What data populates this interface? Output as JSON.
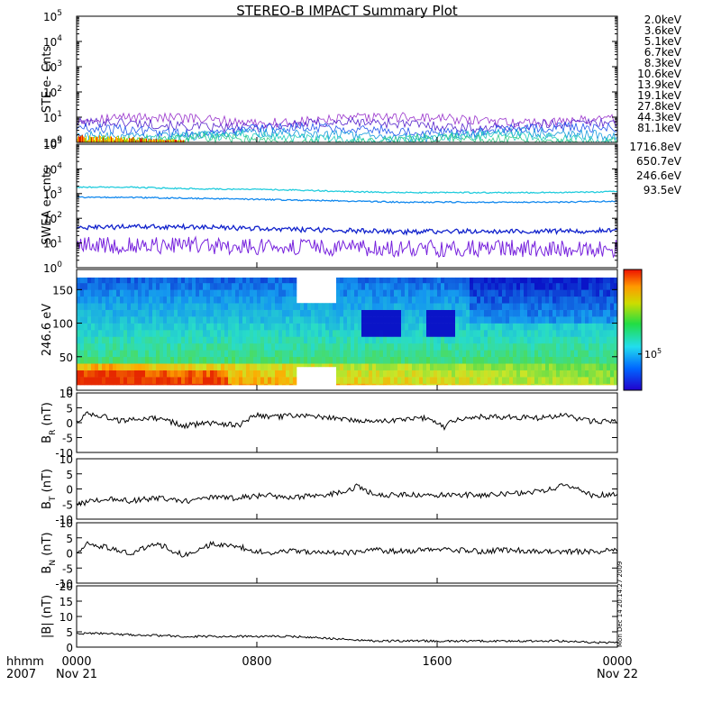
{
  "title": "STEREO-B IMPACT Summary Plot",
  "side_stamp": "Mon Dec 14 20:14:27 2009",
  "time_axis": {
    "corner_labels": [
      "hhmm",
      "2007"
    ],
    "ticks": [
      {
        "hhmm": "0000",
        "date": "Nov 21",
        "frac": 0
      },
      {
        "hhmm": "0800",
        "date": "",
        "frac": 0.3333
      },
      {
        "hhmm": "1600",
        "date": "",
        "frac": 0.6667
      },
      {
        "hhmm": "0000",
        "date": "Nov 22",
        "frac": 1
      }
    ]
  },
  "ste_legend": [
    {
      "label": "2.0keV",
      "color": "#9933cc"
    },
    {
      "label": "3.6keV",
      "color": "#5522cc"
    },
    {
      "label": "5.1keV",
      "color": "#2255ee"
    },
    {
      "label": "6.7keV",
      "color": "#1199dd"
    },
    {
      "label": "8.3keV",
      "color": "#22ccbb"
    },
    {
      "label": "10.6keV",
      "color": "#33cc88"
    },
    {
      "label": "13.9keV",
      "color": "#22bb22"
    },
    {
      "label": "19.1keV",
      "color": "#aacc00"
    },
    {
      "label": "27.8keV",
      "color": "#ffcc00"
    },
    {
      "label": "44.3keV",
      "color": "#ff8800"
    },
    {
      "label": "81.1keV",
      "color": "#dd2200"
    }
  ],
  "swea_legend": [
    {
      "label": "1716.8eV",
      "color": "#7722dd"
    },
    {
      "label": "650.7eV",
      "color": "#1122cc"
    },
    {
      "label": "246.6eV",
      "color": "#1188ee"
    },
    {
      "label": "93.5eV",
      "color": "#22ccdd"
    }
  ],
  "chart_data": [
    {
      "type": "line",
      "ylabel": "STE e- Cnts",
      "yscale": "log",
      "ylim": [
        1,
        100000
      ],
      "yticks": [
        {
          "base": "10",
          "exp": "0",
          "v": 1
        },
        {
          "base": "10",
          "exp": "1",
          "v": 10
        },
        {
          "base": "10",
          "exp": "2",
          "v": 100
        },
        {
          "base": "10",
          "exp": "3",
          "v": 1000
        },
        {
          "base": "10",
          "exp": "4",
          "v": 10000
        },
        {
          "base": "10",
          "exp": "5",
          "v": 100000
        }
      ],
      "series": [
        {
          "name": "2.0keV",
          "level": 8
        },
        {
          "name": "3.6keV",
          "level": 5
        },
        {
          "name": "5.1keV",
          "level": 3.2
        },
        {
          "name": "6.7keV",
          "level": 2
        },
        {
          "name": "8.3keV",
          "level": 1.5
        },
        {
          "name": "10.6keV",
          "level": 1.2
        }
      ]
    },
    {
      "type": "line",
      "ylabel": "SWEA e- cnts",
      "yscale": "log",
      "ylim": [
        1,
        100000
      ],
      "yticks": [
        {
          "base": "10",
          "exp": "0",
          "v": 1
        },
        {
          "base": "10",
          "exp": "1",
          "v": 10
        },
        {
          "base": "10",
          "exp": "2",
          "v": 100
        },
        {
          "base": "10",
          "exp": "3",
          "v": 1000
        },
        {
          "base": "10",
          "exp": "4",
          "v": 10000
        },
        {
          "base": "10",
          "exp": "5",
          "v": 100000
        }
      ],
      "series": [
        {
          "name": "93.5eV",
          "x": [
            0,
            0.1,
            0.2,
            0.3,
            0.4,
            0.5,
            0.6,
            0.7,
            0.8,
            0.9,
            1.0
          ],
          "y": [
            1800,
            1800,
            1600,
            1500,
            1400,
            1200,
            1100,
            1100,
            1100,
            1100,
            1200
          ]
        },
        {
          "name": "246.6eV",
          "x": [
            0,
            0.1,
            0.2,
            0.3,
            0.4,
            0.5,
            0.6,
            0.7,
            0.8,
            0.9,
            1.0
          ],
          "y": [
            700,
            700,
            650,
            600,
            550,
            500,
            450,
            450,
            450,
            450,
            500
          ]
        },
        {
          "name": "650.7eV",
          "x": [
            0,
            0.1,
            0.2,
            0.3,
            0.4,
            0.5,
            0.6,
            0.7,
            0.8,
            0.9,
            1.0
          ],
          "y": [
            40,
            45,
            45,
            40,
            35,
            32,
            28,
            30,
            30,
            30,
            32
          ]
        },
        {
          "name": "1716.8eV",
          "x": [
            0,
            0.1,
            0.2,
            0.3,
            0.4,
            0.5,
            0.6,
            0.7,
            0.8,
            0.9,
            1.0
          ],
          "y": [
            8,
            8,
            8,
            7,
            7,
            6,
            6,
            6,
            6,
            6,
            6
          ]
        }
      ]
    },
    {
      "type": "heatmap",
      "ylabel": "246.6 eV",
      "ylim": [
        0,
        180
      ],
      "yticks": [
        {
          "label": "0",
          "v": 0
        },
        {
          "label": "50",
          "v": 50
        },
        {
          "label": "100",
          "v": 100
        },
        {
          "label": "150",
          "v": 150
        }
      ],
      "colorbar": {
        "tick_base": "10",
        "tick_exp": "5",
        "tick_frac": 0.3
      }
    },
    {
      "type": "line",
      "ylabel_main": "B",
      "ylabel_sub": "R",
      "ylabel_unit": "(nT)",
      "ylim": [
        -10,
        10
      ],
      "yticks": [
        {
          "label": "10",
          "v": 10
        },
        {
          "label": "5",
          "v": 5
        },
        {
          "label": "0",
          "v": 0
        },
        {
          "label": "-5",
          "v": -5
        },
        {
          "label": "-10",
          "v": -10
        }
      ],
      "x": [
        0,
        0.02,
        0.05,
        0.08,
        0.1,
        0.15,
        0.2,
        0.25,
        0.3,
        0.33,
        0.37,
        0.4,
        0.45,
        0.5,
        0.55,
        0.6,
        0.65,
        0.68,
        0.7,
        0.75,
        0.8,
        0.85,
        0.9,
        0.95,
        1.0
      ],
      "y": [
        0.5,
        3,
        2.5,
        0.5,
        1,
        1.5,
        -1,
        0,
        -1,
        2.5,
        2,
        2.5,
        2,
        1,
        0.5,
        1,
        1.5,
        -1.5,
        1,
        2,
        2,
        1.5,
        2.5,
        0.5,
        0.5
      ]
    },
    {
      "type": "line",
      "ylabel_main": "B",
      "ylabel_sub": "T",
      "ylabel_unit": "(nT)",
      "ylim": [
        -10,
        10
      ],
      "yticks": [
        {
          "label": "10",
          "v": 10
        },
        {
          "label": "5",
          "v": 5
        },
        {
          "label": "0",
          "v": 0
        },
        {
          "label": "-5",
          "v": -5
        },
        {
          "label": "-10",
          "v": -10
        }
      ],
      "x": [
        0,
        0.03,
        0.06,
        0.1,
        0.15,
        0.2,
        0.25,
        0.3,
        0.35,
        0.4,
        0.45,
        0.5,
        0.52,
        0.55,
        0.6,
        0.65,
        0.7,
        0.75,
        0.8,
        0.85,
        0.9,
        0.93,
        0.95,
        1.0
      ],
      "y": [
        -5,
        -4,
        -3,
        -4,
        -3,
        -4,
        -3,
        -3,
        -2,
        -3,
        -2,
        -1,
        1,
        -2,
        -2,
        -2,
        -2,
        -2,
        -1.5,
        -1,
        1,
        0,
        -2,
        -2
      ]
    },
    {
      "type": "line",
      "ylabel_main": "B",
      "ylabel_sub": "N",
      "ylabel_unit": "(nT)",
      "ylim": [
        -10,
        10
      ],
      "yticks": [
        {
          "label": "10",
          "v": 10
        },
        {
          "label": "5",
          "v": 5
        },
        {
          "label": "0",
          "v": 0
        },
        {
          "label": "-5",
          "v": -5
        },
        {
          "label": "-10",
          "v": -10
        }
      ],
      "x": [
        0,
        0.02,
        0.05,
        0.1,
        0.15,
        0.2,
        0.25,
        0.3,
        0.35,
        0.4,
        0.45,
        0.5,
        0.55,
        0.6,
        0.65,
        0.7,
        0.75,
        0.8,
        0.85,
        0.9,
        0.95,
        1.0
      ],
      "y": [
        0,
        3,
        2,
        0,
        3,
        -1,
        3,
        2,
        0,
        1,
        0,
        0,
        1,
        0.5,
        1,
        1,
        0.5,
        1,
        0.5,
        0.5,
        0.5,
        1
      ]
    },
    {
      "type": "line",
      "ylabel": "|B| (nT)",
      "ylim": [
        0,
        20
      ],
      "yticks": [
        {
          "label": "20",
          "v": 20
        },
        {
          "label": "15",
          "v": 15
        },
        {
          "label": "10",
          "v": 10
        },
        {
          "label": "5",
          "v": 5
        },
        {
          "label": "0",
          "v": 0
        }
      ],
      "x": [
        0,
        0.05,
        0.1,
        0.15,
        0.2,
        0.25,
        0.3,
        0.35,
        0.4,
        0.45,
        0.5,
        0.55,
        0.6,
        0.65,
        0.7,
        0.75,
        0.8,
        0.85,
        0.9,
        0.95,
        1.0
      ],
      "y": [
        4.5,
        4.5,
        4,
        3.8,
        3.5,
        3.5,
        3.5,
        3.5,
        3.5,
        3,
        2.5,
        2,
        2,
        2,
        2,
        2,
        2,
        2,
        2,
        1.5,
        1.5
      ]
    }
  ]
}
